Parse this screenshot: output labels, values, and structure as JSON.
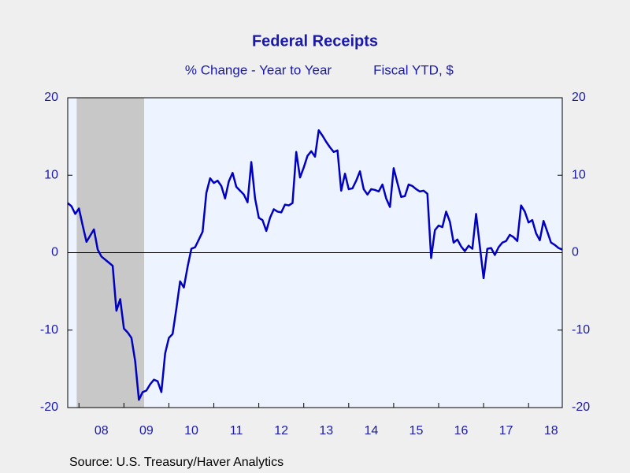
{
  "chart_data": {
    "type": "line",
    "title": "Federal Receipts",
    "subtitle": "% Change - Year to Year",
    "subtitle2": "Fiscal YTD, $",
    "source": "Source:  U.S. Treasury/Haver Analytics",
    "x": [
      2007.75,
      2007.833,
      2007.917,
      2008,
      2008.083,
      2008.167,
      2008.25,
      2008.333,
      2008.417,
      2008.5,
      2008.583,
      2008.667,
      2008.75,
      2008.833,
      2008.917,
      2009,
      2009.083,
      2009.167,
      2009.25,
      2009.333,
      2009.417,
      2009.5,
      2009.583,
      2009.667,
      2009.75,
      2009.833,
      2009.917,
      2010,
      2010.083,
      2010.167,
      2010.25,
      2010.333,
      2010.417,
      2010.5,
      2010.583,
      2010.667,
      2010.75,
      2010.833,
      2010.917,
      2011,
      2011.083,
      2011.167,
      2011.25,
      2011.333,
      2011.417,
      2011.5,
      2011.583,
      2011.667,
      2011.75,
      2011.833,
      2011.917,
      2012,
      2012.083,
      2012.167,
      2012.25,
      2012.333,
      2012.417,
      2012.5,
      2012.583,
      2012.667,
      2012.75,
      2012.833,
      2012.917,
      2013,
      2013.083,
      2013.167,
      2013.25,
      2013.333,
      2013.417,
      2013.5,
      2013.583,
      2013.667,
      2013.75,
      2013.833,
      2013.917,
      2014,
      2014.083,
      2014.167,
      2014.25,
      2014.333,
      2014.417,
      2014.5,
      2014.583,
      2014.667,
      2014.75,
      2014.833,
      2014.917,
      2015,
      2015.083,
      2015.167,
      2015.25,
      2015.333,
      2015.417,
      2015.5,
      2015.583,
      2015.667,
      2015.75,
      2015.833,
      2015.917,
      2016,
      2016.083,
      2016.167,
      2016.25,
      2016.333,
      2016.417,
      2016.5,
      2016.583,
      2016.667,
      2016.75,
      2016.833,
      2016.917,
      2017,
      2017.083,
      2017.167,
      2017.25,
      2017.333,
      2017.417,
      2017.5,
      2017.583,
      2017.667,
      2017.75,
      2017.833,
      2017.917,
      2018,
      2018.083,
      2018.167,
      2018.25,
      2018.333,
      2018.417,
      2018.5,
      2018.583,
      2018.667,
      2018.75
    ],
    "series": [
      {
        "color": "#0000c0",
        "values": [
          6.4,
          6.0,
          5.0,
          5.7,
          3.5,
          1.4,
          2.2,
          3.0,
          0.4,
          -0.5,
          -0.9,
          -1.3,
          -1.7,
          -7.5,
          -6.0,
          -9.8,
          -10.3,
          -11.0,
          -14.0,
          -19.0,
          -18.0,
          -17.8,
          -17.0,
          -16.4,
          -16.6,
          -18.0,
          -13.0,
          -11.0,
          -10.5,
          -7.2,
          -3.7,
          -4.5,
          -1.8,
          0.5,
          0.7,
          1.7,
          2.7,
          7.7,
          9.6,
          9.0,
          9.3,
          8.6,
          7.0,
          9.2,
          10.3,
          8.5,
          8.0,
          7.5,
          6.5,
          11.7,
          7.0,
          4.5,
          4.2,
          2.8,
          4.5,
          5.6,
          5.3,
          5.2,
          6.2,
          6.1,
          6.4,
          13.0,
          9.7,
          11.0,
          12.5,
          13.1,
          12.4,
          15.8,
          15.1,
          14.3,
          13.6,
          13.0,
          13.2,
          8.0,
          10.2,
          8.2,
          8.3,
          9.3,
          10.5,
          8.2,
          7.5,
          8.2,
          8.1,
          7.9,
          8.8,
          7.0,
          5.9,
          10.9,
          9.0,
          7.2,
          7.3,
          8.8,
          8.6,
          8.2,
          7.9,
          8.0,
          7.6,
          -0.7,
          2.9,
          3.5,
          3.3,
          5.3,
          4.0,
          1.3,
          1.7,
          0.8,
          0.2,
          0.9,
          0.5,
          5.0,
          0.8,
          -3.3,
          0.5,
          0.6,
          -0.3,
          0.7,
          1.3,
          1.5,
          2.3,
          2.0,
          1.5,
          6.1,
          5.3,
          3.9,
          4.2,
          2.5,
          1.6,
          4.1,
          2.7,
          1.3,
          1.0,
          0.6,
          0.4
        ]
      }
    ],
    "xlim": [
      2007.75,
      2018.75
    ],
    "xticks": [
      {
        "value": 2008,
        "label": "08"
      },
      {
        "value": 2009,
        "label": "09"
      },
      {
        "value": 2010,
        "label": "10"
      },
      {
        "value": 2011,
        "label": "11"
      },
      {
        "value": 2012,
        "label": "12"
      },
      {
        "value": 2013,
        "label": "13"
      },
      {
        "value": 2014,
        "label": "14"
      },
      {
        "value": 2015,
        "label": "15"
      },
      {
        "value": 2016,
        "label": "16"
      },
      {
        "value": 2017,
        "label": "17"
      },
      {
        "value": 2018,
        "label": "18"
      }
    ],
    "ylim": [
      -20,
      20
    ],
    "yticks": [
      -20,
      -10,
      0,
      10,
      20
    ],
    "y2lim": [
      -20,
      20
    ],
    "y2ticks": [
      -20,
      -10,
      0,
      10,
      20
    ],
    "shaded_periods": [
      [
        2007.95,
        2009.45
      ]
    ],
    "shade_color": "#c8c8c8",
    "plot_color": "#eef4ff"
  }
}
